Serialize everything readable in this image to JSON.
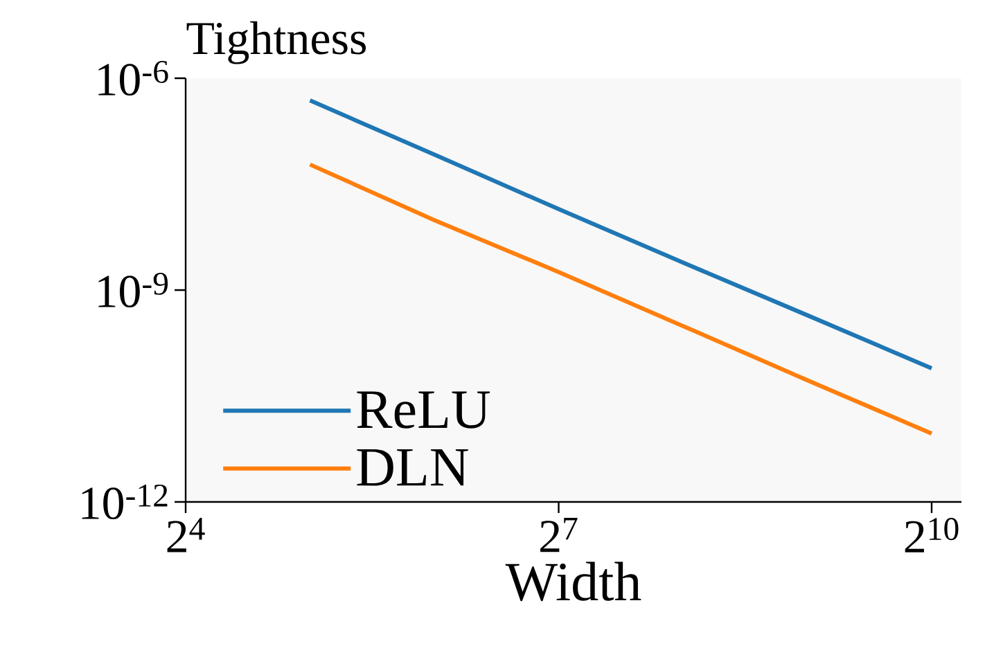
{
  "chart_data": {
    "type": "line",
    "title": "Tightness",
    "xlabel": "Width",
    "x": [
      32,
      64,
      128,
      256,
      512,
      1024
    ],
    "series": [
      {
        "name": "ReLU",
        "color": "#1f77b4",
        "values": [
          4.85e-07,
          8.3e-08,
          1.4e-08,
          2.45e-09,
          4.4e-10,
          7.8e-11
        ]
      },
      {
        "name": "DLN",
        "color": "#ff7f0e",
        "values": [
          6e-08,
          9.8e-09,
          1.8e-09,
          3.1e-10,
          5.3e-11,
          9.3e-12
        ]
      }
    ],
    "log": "xy",
    "xlim": [
      16,
      1209
    ],
    "ylim": [
      1e-12,
      1e-06
    ],
    "xticks": [
      {
        "value": 16,
        "label": "2$^{4}$"
      },
      {
        "value": 128,
        "label": "2$^{7}$"
      },
      {
        "value": 1024,
        "label": "2$^{10}$"
      }
    ],
    "yticks": [
      {
        "value": 1e-12,
        "label": "10$^{-12}$"
      },
      {
        "value": 1e-09,
        "label": "10$^{-9}$"
      },
      {
        "value": 1e-06,
        "label": "10$^{-6}$"
      }
    ],
    "grid": false,
    "legend": "bottom left",
    "marker": "none",
    "line_style": "solid"
  }
}
